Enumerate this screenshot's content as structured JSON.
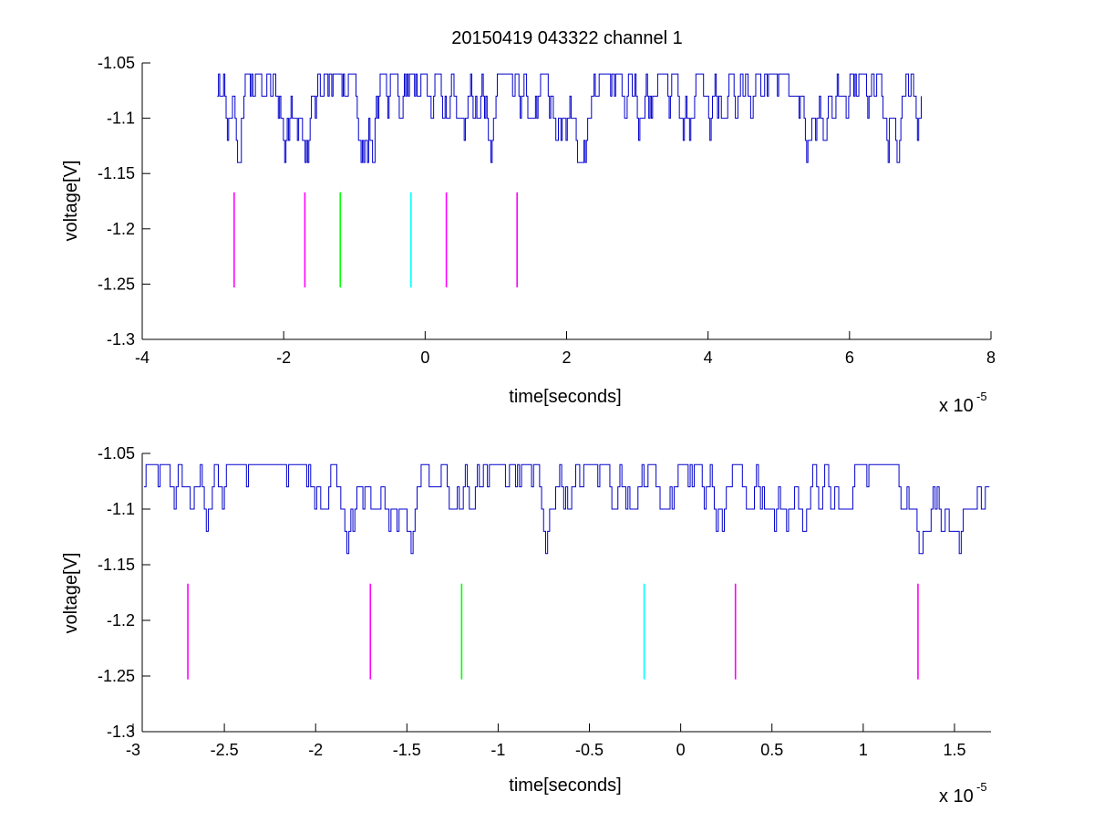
{
  "figure": {
    "title": "20150419 043322 channel 1"
  },
  "colors": {
    "trace": "#0000cc",
    "axes": "#000000",
    "background": "#ffffff"
  },
  "chart_data": [
    {
      "type": "line",
      "xlabel": "time[seconds]",
      "ylabel": "voltage[V]",
      "x_exponent_base": "x 10",
      "x_exponent_power": "-5",
      "xlim": [
        -4,
        8
      ],
      "ylim": [
        -1.3,
        -1.05
      ],
      "grid": false,
      "legend": "none",
      "xticks": [
        -4,
        -2,
        0,
        2,
        4,
        6,
        8
      ],
      "xtick_labels": [
        "-4",
        "-2",
        "0",
        "2",
        "4",
        "6",
        "8"
      ],
      "yticks": [
        -1.05,
        -1.1,
        -1.15,
        -1.2,
        -1.25,
        -1.3
      ],
      "ytick_labels": [
        "-1.05",
        "-1.1",
        "-1.15",
        "-1.2",
        "-1.25",
        "-1.3"
      ],
      "series": [
        {
          "style": "noise-trace",
          "color": "#0000cc",
          "x_range": [
            -2.94,
            7.02
          ],
          "levels": [
            -1.06,
            -1.08,
            -1.1,
            -1.12,
            -1.14
          ],
          "description_values": "digitized voltage oscillating between -1.14 and -1.06 V"
        }
      ],
      "markers": [
        {
          "x": -2.7,
          "y_range": [
            -1.253,
            -1.167
          ],
          "color": "#ff00ff"
        },
        {
          "x": -1.7,
          "y_range": [
            -1.253,
            -1.167
          ],
          "color": "#ff00ff"
        },
        {
          "x": -1.2,
          "y_range": [
            -1.253,
            -1.167
          ],
          "color": "#00ff00"
        },
        {
          "x": -0.2,
          "y_range": [
            -1.253,
            -1.167
          ],
          "color": "#00ffff"
        },
        {
          "x": 0.3,
          "y_range": [
            -1.253,
            -1.167
          ],
          "color": "#ff00ff"
        },
        {
          "x": 1.3,
          "y_range": [
            -1.253,
            -1.167
          ],
          "color": "#ff00ff"
        }
      ]
    },
    {
      "type": "line",
      "xlabel": "time[seconds]",
      "ylabel": "voltage[V]",
      "x_exponent_base": "x 10",
      "x_exponent_power": "-5",
      "xlim": [
        -2.95,
        1.7
      ],
      "ylim": [
        -1.3,
        -1.05
      ],
      "grid": false,
      "legend": "none",
      "xticks": [
        -3,
        -2.5,
        -2,
        -1.5,
        -1,
        -0.5,
        0,
        0.5,
        1,
        1.5
      ],
      "xtick_labels": [
        "-3",
        "-2.5",
        "-2",
        "-1.5",
        "-1",
        "-0.5",
        "0",
        "0.5",
        "1",
        "1.5"
      ],
      "yticks": [
        -1.05,
        -1.1,
        -1.15,
        -1.2,
        -1.25,
        -1.3
      ],
      "ytick_labels": [
        "-1.05",
        "-1.1",
        "-1.15",
        "-1.2",
        "-1.25",
        "-1.3"
      ],
      "series": [
        {
          "style": "noise-trace",
          "color": "#0000cc",
          "x_range": [
            -2.94,
            1.7
          ],
          "levels": [
            -1.06,
            -1.08,
            -1.1,
            -1.12,
            -1.14
          ],
          "description_values": "digitized voltage oscillating between -1.14 and -1.06 V"
        }
      ],
      "markers": [
        {
          "x": -2.7,
          "y_range": [
            -1.253,
            -1.167
          ],
          "color": "#ff00ff"
        },
        {
          "x": -1.7,
          "y_range": [
            -1.253,
            -1.167
          ],
          "color": "#ff00ff"
        },
        {
          "x": -1.2,
          "y_range": [
            -1.253,
            -1.167
          ],
          "color": "#00ff00"
        },
        {
          "x": -0.2,
          "y_range": [
            -1.253,
            -1.167
          ],
          "color": "#00ffff"
        },
        {
          "x": 0.3,
          "y_range": [
            -1.253,
            -1.167
          ],
          "color": "#ff00ff"
        },
        {
          "x": 1.3,
          "y_range": [
            -1.253,
            -1.167
          ],
          "color": "#ff00ff"
        }
      ]
    }
  ]
}
